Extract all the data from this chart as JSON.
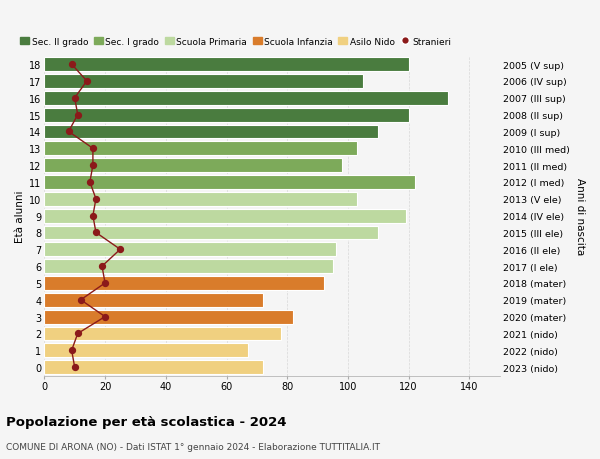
{
  "ages": [
    18,
    17,
    16,
    15,
    14,
    13,
    12,
    11,
    10,
    9,
    8,
    7,
    6,
    5,
    4,
    3,
    2,
    1,
    0
  ],
  "right_labels": [
    "2005 (V sup)",
    "2006 (IV sup)",
    "2007 (III sup)",
    "2008 (II sup)",
    "2009 (I sup)",
    "2010 (III med)",
    "2011 (II med)",
    "2012 (I med)",
    "2013 (V ele)",
    "2014 (IV ele)",
    "2015 (III ele)",
    "2016 (II ele)",
    "2017 (I ele)",
    "2018 (mater)",
    "2019 (mater)",
    "2020 (mater)",
    "2021 (nido)",
    "2022 (nido)",
    "2023 (nido)"
  ],
  "bar_values": [
    120,
    105,
    133,
    120,
    110,
    103,
    98,
    122,
    103,
    119,
    110,
    96,
    95,
    92,
    72,
    82,
    78,
    67,
    72
  ],
  "bar_colors": [
    "#4a7c3f",
    "#4a7c3f",
    "#4a7c3f",
    "#4a7c3f",
    "#4a7c3f",
    "#7daa5a",
    "#7daa5a",
    "#7daa5a",
    "#bdd9a0",
    "#bdd9a0",
    "#bdd9a0",
    "#bdd9a0",
    "#bdd9a0",
    "#d97c2b",
    "#d97c2b",
    "#d97c2b",
    "#f0d080",
    "#f0d080",
    "#f0d080"
  ],
  "stranieri_values": [
    9,
    14,
    10,
    11,
    8,
    16,
    16,
    15,
    17,
    16,
    17,
    25,
    19,
    20,
    12,
    20,
    11,
    9,
    10
  ],
  "stranieri_color": "#8b1a1a",
  "legend_labels": [
    "Sec. II grado",
    "Sec. I grado",
    "Scuola Primaria",
    "Scuola Infanzia",
    "Asilo Nido",
    "Stranieri"
  ],
  "legend_colors": [
    "#4a7c3f",
    "#7daa5a",
    "#bdd9a0",
    "#d97c2b",
    "#f0d080",
    "#8b1a1a"
  ],
  "ylabel_left": "Età alunni",
  "ylabel_right": "Anni di nascita",
  "title": "Popolazione per età scolastica - 2024",
  "subtitle": "COMUNE DI ARONA (NO) - Dati ISTAT 1° gennaio 2024 - Elaborazione TUTTITALIA.IT",
  "xlim": [
    0,
    150
  ],
  "xticks": [
    0,
    20,
    40,
    60,
    80,
    100,
    120,
    140
  ],
  "bg_color": "#f5f5f5",
  "grid_color": "#d8d8d8",
  "bar_edge_color": "#ffffff",
  "bar_height": 0.82
}
